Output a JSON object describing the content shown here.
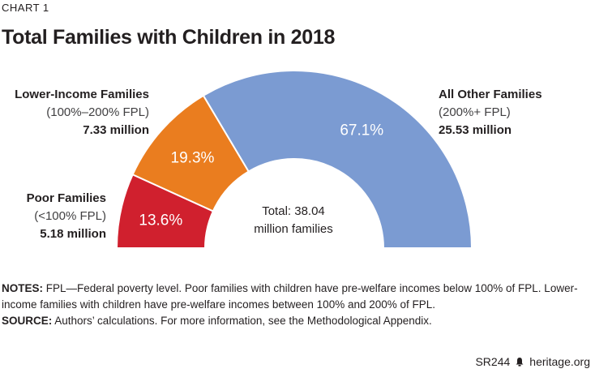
{
  "kicker": "CHART 1",
  "title": "Total Families with Children in 2018",
  "chart_data": {
    "type": "pie",
    "subtype": "semi-donut",
    "title": "Total Families with Children in 2018",
    "unit": "percent of families",
    "categories": [
      "Poor Families",
      "Lower-Income Families",
      "All Other Families"
    ],
    "values": [
      13.6,
      19.3,
      67.1
    ],
    "value_labels": [
      "13.6%",
      "19.3%",
      "67.1%"
    ],
    "colors": [
      "#d0202e",
      "#ea7d1f",
      "#7b9bd2"
    ],
    "legend": [
      {
        "name": "Poor Families",
        "range": "(<100% FPL)",
        "count": "5.18 million"
      },
      {
        "name": "Lower-Income Families",
        "range": "(100%–200% FPL)",
        "count": "7.33 million"
      },
      {
        "name": "All Other Families",
        "range": "(200%+ FPL)",
        "count": "25.53 million"
      }
    ],
    "center_label": {
      "line1": "Total: 38.04",
      "line2": "million families"
    }
  },
  "notes": {
    "notes_label": "NOTES:",
    "notes_text": "FPL—Federal poverty level. Poor families with children have pre-welfare incomes below 100% of FPL. Lower-income families with children have pre-welfare incomes between 100% and 200% of FPL.",
    "source_label": "SOURCE:",
    "source_text": "Authors’ calculations. For more information, see the Methodological Appendix."
  },
  "footer": {
    "report_id": "SR244",
    "site": "heritage.org",
    "logo_icon": "liberty-bell-icon"
  }
}
